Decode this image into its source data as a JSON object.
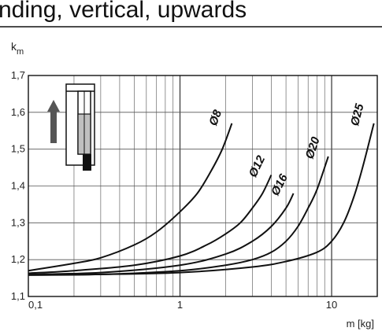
{
  "header": {
    "title_fragment": "nding, vertical, upwards"
  },
  "chart_data": {
    "type": "line",
    "xscale": "log",
    "xlim": [
      0.1,
      20
    ],
    "ylim": [
      1.1,
      1.7
    ],
    "ylabel": "k",
    "ylabel_sub": "m",
    "xlabel": "m [kg]",
    "x_ticks": [
      0.1,
      1,
      10
    ],
    "x_tick_labels": [
      "0,1",
      "1",
      "10"
    ],
    "y_ticks": [
      1.1,
      1.2,
      1.3,
      1.4,
      1.5,
      1.6,
      1.7
    ],
    "y_tick_labels": [
      "1,1",
      "1,2",
      "1,3",
      "1,4",
      "1,5",
      "1,6",
      "1,7"
    ],
    "grid": true,
    "series": [
      {
        "name": "Ø8",
        "x": [
          0.1,
          0.2,
          0.3,
          0.5,
          0.7,
          1,
          1.3,
          1.6,
          1.9,
          2.2
        ],
        "y": [
          1.17,
          1.19,
          1.205,
          1.24,
          1.275,
          1.33,
          1.38,
          1.44,
          1.5,
          1.57
        ]
      },
      {
        "name": "Ø12",
        "x": [
          0.1,
          0.2,
          0.5,
          1,
          1.5,
          2,
          2.5,
          3,
          3.5,
          4
        ],
        "y": [
          1.163,
          1.17,
          1.185,
          1.21,
          1.24,
          1.27,
          1.3,
          1.34,
          1.38,
          1.43
        ]
      },
      {
        "name": "Ø16",
        "x": [
          0.1,
          0.3,
          1,
          2,
          3,
          4,
          5,
          5.6
        ],
        "y": [
          1.16,
          1.165,
          1.185,
          1.215,
          1.25,
          1.29,
          1.34,
          1.38
        ]
      },
      {
        "name": "Ø20",
        "x": [
          0.1,
          0.3,
          1,
          2,
          3,
          4,
          5,
          6,
          7,
          8,
          9.5
        ],
        "y": [
          1.158,
          1.16,
          1.17,
          1.185,
          1.2,
          1.22,
          1.25,
          1.29,
          1.34,
          1.39,
          1.48
        ]
      },
      {
        "name": "Ø25",
        "x": [
          0.1,
          0.3,
          1,
          3,
          5,
          8,
          10,
          12,
          14,
          16,
          19
        ],
        "y": [
          1.158,
          1.16,
          1.165,
          1.18,
          1.195,
          1.22,
          1.25,
          1.3,
          1.37,
          1.45,
          1.57
        ]
      }
    ]
  }
}
